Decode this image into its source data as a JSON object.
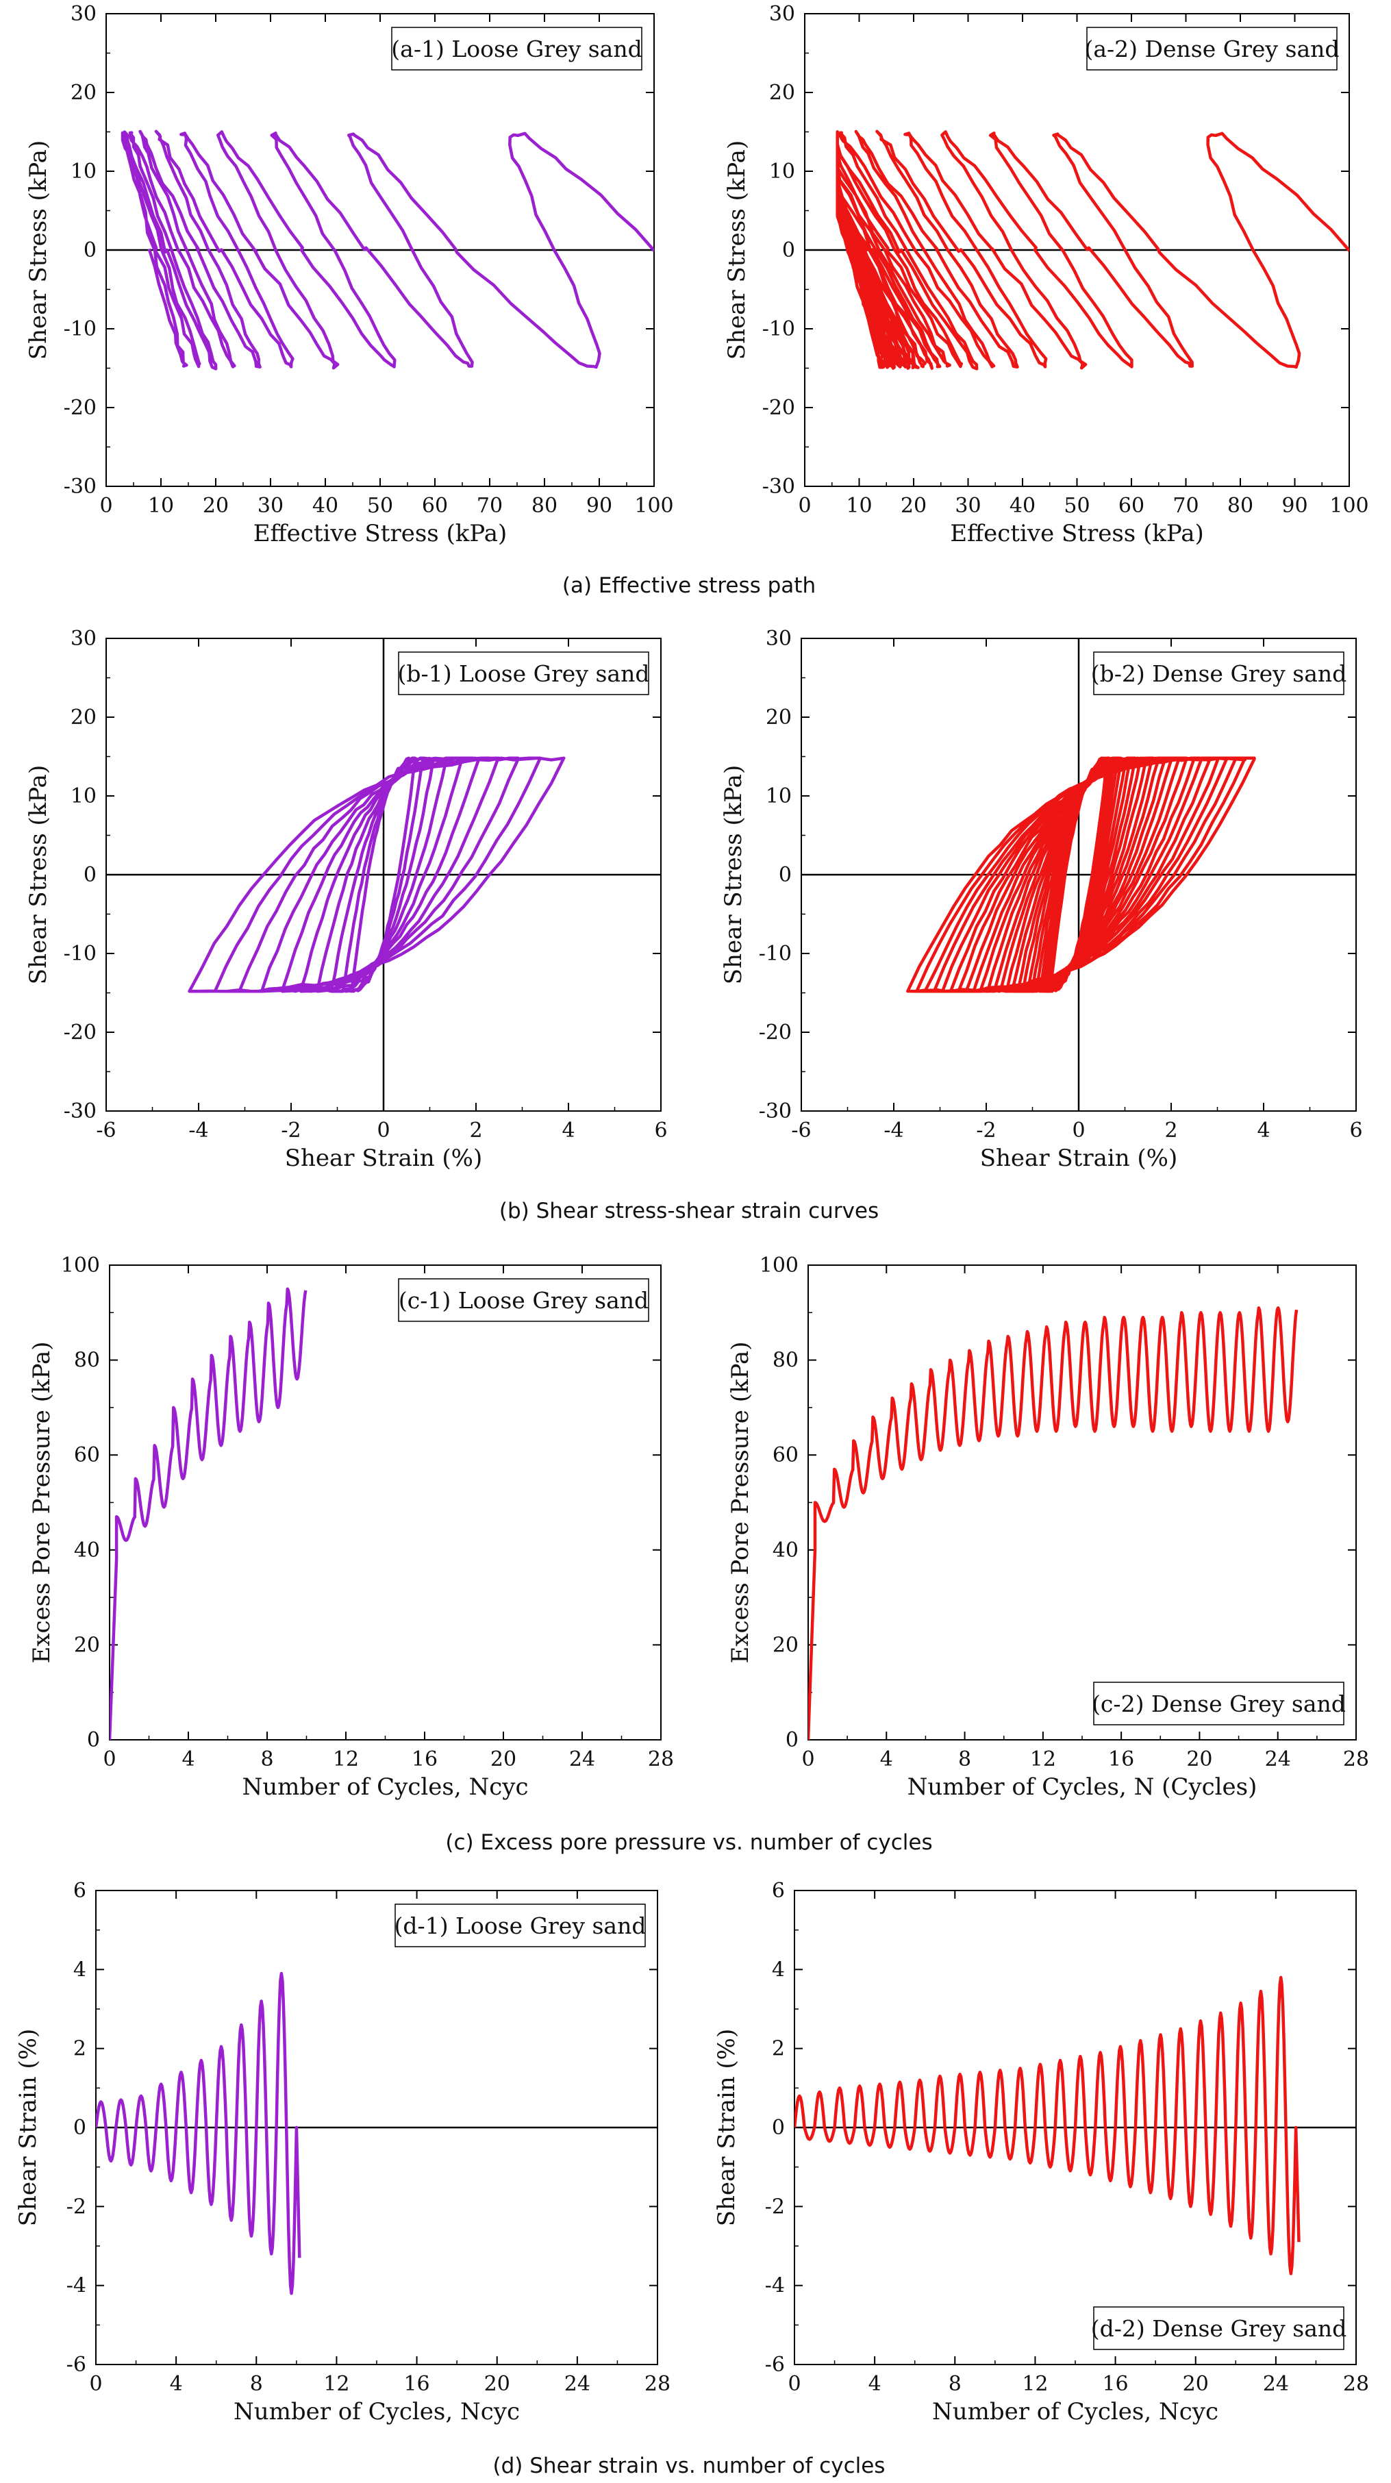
{
  "colors": {
    "loose": "#9a20d0",
    "dense": "#ee1515",
    "axis": "#000000"
  },
  "captions": [
    "(a) Effective stress path",
    "(b) Shear stress-shear strain curves",
    "(c) Excess pore pressure vs. number of cycles",
    "(d) Shear strain vs. number of cycles"
  ],
  "chart_data": [
    {
      "id": "a1",
      "type": "line",
      "legend": "(a-1) Loose Grey sand",
      "legend_position": "top-right",
      "xlabel": "Effective Stress (kPa)",
      "ylabel": "Shear Stress (kPa)",
      "xlim": [
        0,
        100
      ],
      "ylim": [
        -30,
        30
      ],
      "xticks": [
        0,
        10,
        20,
        30,
        40,
        50,
        60,
        70,
        80,
        90,
        100
      ],
      "yticks": [
        -30,
        -20,
        -10,
        0,
        10,
        20,
        30
      ],
      "zero_lines": [
        "y"
      ],
      "color": "loose",
      "grid": false,
      "generator": {
        "kind": "stress_path",
        "p0": 100,
        "tau": 14.8,
        "pmin": 5,
        "cycles": 10,
        "decay": 0.62
      }
    },
    {
      "id": "a2",
      "type": "line",
      "legend": "(a-2) Dense Grey sand",
      "legend_position": "top-right",
      "xlabel": "Effective Stress (kPa)",
      "ylabel": "Shear Stress (kPa)",
      "xlim": [
        0,
        100
      ],
      "ylim": [
        -30,
        30
      ],
      "xticks": [
        0,
        10,
        20,
        30,
        40,
        50,
        60,
        70,
        80,
        90,
        100
      ],
      "yticks": [
        -30,
        -20,
        -10,
        0,
        10,
        20,
        30
      ],
      "zero_lines": [
        "y"
      ],
      "color": "dense",
      "grid": false,
      "generator": {
        "kind": "stress_path",
        "p0": 100,
        "tau": 14.8,
        "pmin": 8,
        "cycles": 25,
        "decay": 0.5
      }
    },
    {
      "id": "b1",
      "type": "line",
      "legend": "(b-1) Loose Grey sand",
      "legend_position": "top-right",
      "xlabel": "Shear Strain (%)",
      "ylabel": "Shear Stress (kPa)",
      "xlim": [
        -6,
        6
      ],
      "ylim": [
        -30,
        30
      ],
      "xticks": [
        -6,
        -4,
        -2,
        0,
        2,
        4,
        6
      ],
      "yticks": [
        -30,
        -20,
        -10,
        0,
        10,
        20,
        30
      ],
      "zero_lines": [
        "x",
        "y"
      ],
      "color": "loose",
      "grid": false,
      "generator": {
        "kind": "hysteresis",
        "tau": 14.8,
        "cycles": 10,
        "gmax_pos": 3.9,
        "gmax_neg": 4.2
      }
    },
    {
      "id": "b2",
      "type": "line",
      "legend": "(b-2) Dense Grey sand",
      "legend_position": "top-right",
      "xlabel": "Shear Strain (%)",
      "ylabel": "Shear Stress (kPa)",
      "xlim": [
        -6,
        6
      ],
      "ylim": [
        -30,
        30
      ],
      "xticks": [
        -6,
        -4,
        -2,
        0,
        2,
        4,
        6
      ],
      "yticks": [
        -30,
        -20,
        -10,
        0,
        10,
        20,
        30
      ],
      "zero_lines": [
        "x",
        "y"
      ],
      "color": "dense",
      "grid": false,
      "generator": {
        "kind": "hysteresis",
        "tau": 14.8,
        "cycles": 25,
        "gmax_pos": 3.8,
        "gmax_neg": 3.7
      }
    },
    {
      "id": "c1",
      "type": "line",
      "legend": "(c-1) Loose Grey sand",
      "legend_position": "top-right",
      "xlabel": "Number of Cycles, Ncyc",
      "ylabel": "Excess Pore Pressure (kPa)",
      "xlim": [
        0,
        28
      ],
      "ylim": [
        0,
        100
      ],
      "xticks": [
        0,
        4,
        8,
        12,
        16,
        20,
        24,
        28
      ],
      "yticks": [
        0,
        20,
        40,
        60,
        80,
        100
      ],
      "zero_lines": [],
      "color": "loose",
      "grid": false,
      "generator": {
        "kind": "pore_pressure",
        "n": 10,
        "upper": [
          38,
          47,
          55,
          62,
          70,
          76,
          81,
          85,
          88,
          92,
          95
        ],
        "amp": [
          0,
          5,
          10,
          13,
          15,
          17,
          19,
          20,
          21,
          22,
          19
        ]
      }
    },
    {
      "id": "c2",
      "type": "line",
      "legend": "(c-2) Dense Grey sand",
      "legend_position": "bottom-right",
      "xlabel": "Number of Cycles, N (Cycles)",
      "ylabel": "Excess Pore Pressure (kPa)",
      "xlim": [
        0,
        28
      ],
      "ylim": [
        0,
        100
      ],
      "xticks": [
        0,
        4,
        8,
        12,
        16,
        20,
        24,
        28
      ],
      "yticks": [
        0,
        20,
        40,
        60,
        80,
        100
      ],
      "zero_lines": [],
      "color": "dense",
      "grid": false,
      "generator": {
        "kind": "pore_pressure",
        "n": 25,
        "upper": [
          40,
          50,
          57,
          63,
          68,
          72,
          75,
          78,
          80,
          82,
          84,
          85,
          86,
          87,
          88,
          88,
          89,
          89,
          89,
          89,
          90,
          90,
          90,
          90,
          91,
          91
        ],
        "amp": [
          0,
          4,
          8,
          11,
          13,
          15,
          16,
          17,
          18,
          19,
          20,
          21,
          21,
          22,
          22,
          23,
          23,
          23,
          24,
          24,
          24,
          25,
          25,
          25,
          26,
          24
        ]
      }
    },
    {
      "id": "d1",
      "type": "line",
      "legend": "(d-1) Loose Grey sand",
      "legend_position": "top-right",
      "xlabel": "Number of Cycles, Ncyc",
      "ylabel": "Shear Strain (%)",
      "xlim": [
        0,
        28
      ],
      "ylim": [
        -6,
        6
      ],
      "xticks": [
        0,
        4,
        8,
        12,
        16,
        20,
        24,
        28
      ],
      "yticks": [
        -6,
        -4,
        -2,
        0,
        2,
        4,
        6
      ],
      "zero_lines": [
        "y"
      ],
      "color": "loose",
      "grid": false,
      "generator": {
        "kind": "strain_history",
        "n": 10,
        "pos": [
          0.65,
          0.7,
          0.8,
          1.1,
          1.4,
          1.7,
          2.05,
          2.6,
          3.2,
          3.9
        ],
        "neg": [
          -0.85,
          -0.95,
          -1.1,
          -1.35,
          -1.65,
          -1.95,
          -2.35,
          -2.75,
          -3.2,
          -4.2
        ],
        "end": -3.3
      }
    },
    {
      "id": "d2",
      "type": "line",
      "legend": "(d-2) Dense Grey sand",
      "legend_position": "bottom-right",
      "xlabel": "Number of Cycles, Ncyc",
      "ylabel": "Shear Strain (%)",
      "xlim": [
        0,
        28
      ],
      "ylim": [
        -6,
        6
      ],
      "xticks": [
        0,
        4,
        8,
        12,
        16,
        20,
        24,
        28
      ],
      "yticks": [
        -6,
        -4,
        -2,
        0,
        2,
        4,
        6
      ],
      "zero_lines": [
        "y"
      ],
      "color": "dense",
      "grid": false,
      "generator": {
        "kind": "strain_history",
        "n": 25,
        "pos": [
          0.8,
          0.9,
          1.0,
          1.05,
          1.1,
          1.15,
          1.2,
          1.3,
          1.35,
          1.4,
          1.45,
          1.5,
          1.6,
          1.7,
          1.8,
          1.9,
          2.05,
          2.2,
          2.35,
          2.5,
          2.7,
          2.9,
          3.15,
          3.45,
          3.8
        ],
        "neg": [
          -0.3,
          -0.35,
          -0.4,
          -0.45,
          -0.5,
          -0.55,
          -0.6,
          -0.65,
          -0.7,
          -0.75,
          -0.8,
          -0.9,
          -1.0,
          -1.1,
          -1.2,
          -1.35,
          -1.5,
          -1.65,
          -1.8,
          -2.0,
          -2.2,
          -2.5,
          -2.8,
          -3.2,
          -3.7
        ],
        "end": -2.9
      }
    }
  ]
}
